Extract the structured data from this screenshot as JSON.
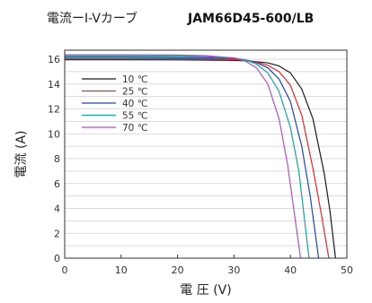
{
  "header": {
    "title": "電流ーI-Vカーブ",
    "model": "JAM66D45-600/LB"
  },
  "chart_data": {
    "type": "line",
    "xlabel": "電 圧 (V)",
    "ylabel": "電流 (A)",
    "xlim": [
      0,
      50
    ],
    "ylim": [
      0,
      16
    ],
    "xticks": [
      0,
      10,
      20,
      30,
      40,
      50
    ],
    "yticks": [
      0,
      2,
      4,
      6,
      8,
      10,
      12,
      14,
      16
    ],
    "grid": "horizontal",
    "legend_position": "top-left",
    "series": [
      {
        "name": "10 ℃",
        "color": "#1a1a1a",
        "x": [
          0,
          10,
          20,
          25,
          30,
          32,
          34,
          36,
          38,
          40,
          42,
          44,
          46,
          47,
          48
        ],
        "y": [
          15.95,
          15.95,
          15.94,
          15.93,
          15.9,
          15.86,
          15.8,
          15.7,
          15.45,
          14.9,
          13.6,
          11.2,
          6.8,
          3.8,
          0
        ]
      },
      {
        "name": "25 ℃",
        "color": "#e8262a",
        "x": [
          0,
          10,
          20,
          25,
          30,
          32,
          34,
          36,
          38,
          40,
          42,
          44,
          45.5,
          46.8
        ],
        "y": [
          16.05,
          16.05,
          16.04,
          16.03,
          15.98,
          15.9,
          15.78,
          15.5,
          15.0,
          13.9,
          11.5,
          7.2,
          3.5,
          0
        ]
      },
      {
        "name": "40 ℃",
        "color": "#1e47b4",
        "x": [
          0,
          10,
          20,
          25,
          30,
          32,
          34,
          36,
          38,
          40,
          42,
          43.5,
          45
        ],
        "y": [
          16.15,
          16.15,
          16.14,
          16.12,
          16.05,
          15.95,
          15.72,
          15.3,
          14.4,
          12.6,
          9.0,
          5.0,
          0
        ]
      },
      {
        "name": "55 ℃",
        "color": "#1aa39a",
        "x": [
          0,
          10,
          20,
          25,
          30,
          32,
          34,
          36,
          38,
          40,
          41.5,
          43.3
        ],
        "y": [
          16.25,
          16.25,
          16.24,
          16.2,
          16.1,
          15.95,
          15.6,
          14.9,
          13.4,
          10.5,
          7.0,
          0
        ]
      },
      {
        "name": "70 ℃",
        "color": "#b24fc4",
        "x": [
          0,
          10,
          20,
          25,
          30,
          32,
          34,
          36,
          38,
          39.5,
          41.8
        ],
        "y": [
          16.35,
          16.35,
          16.33,
          16.28,
          16.1,
          15.85,
          15.3,
          14.0,
          11.2,
          7.5,
          0
        ]
      }
    ]
  }
}
